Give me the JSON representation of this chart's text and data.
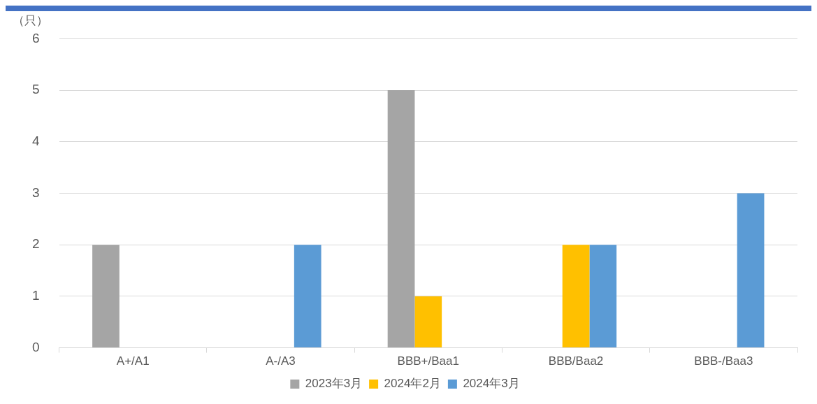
{
  "chart_data": {
    "type": "bar",
    "ylabel": "（只）",
    "categories": [
      "A+/A1",
      "A-/A3",
      "BBB+/Baa1",
      "BBB/Baa2",
      "BBB-/Baa3"
    ],
    "series": [
      {
        "name": "2023年3月",
        "color": "#a5a5a5",
        "values": [
          2,
          0,
          5,
          0,
          0
        ]
      },
      {
        "name": "2024年2月",
        "color": "#ffc000",
        "values": [
          0,
          0,
          1,
          2,
          0
        ]
      },
      {
        "name": "2024年3月",
        "color": "#5b9bd5",
        "values": [
          0,
          2,
          0,
          2,
          3
        ]
      }
    ],
    "ylim": [
      0,
      6
    ],
    "yticks": [
      0,
      1,
      2,
      3,
      4,
      5,
      6
    ],
    "grid": "y",
    "legend": "bottom"
  }
}
